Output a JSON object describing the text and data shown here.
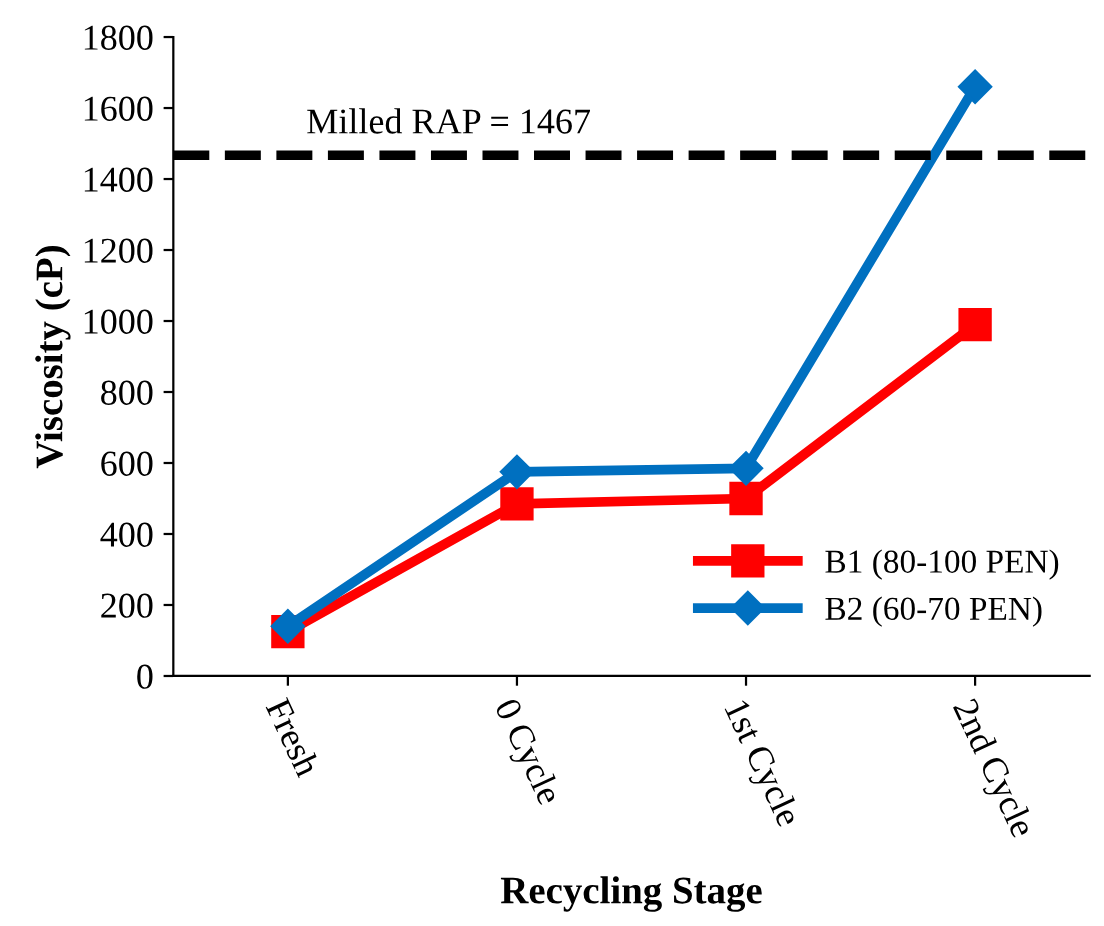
{
  "chart_data": {
    "type": "line",
    "xlabel": "Recycling Stage",
    "ylabel": "Viscosity (cP)",
    "categories": [
      "Fresh",
      "0 Cycle",
      "1st Cycle",
      "2nd Cycle"
    ],
    "series": [
      {
        "name": "B1 (80-100 PEN)",
        "color": "#ff0000",
        "values": [
          125,
          485,
          500,
          990
        ],
        "marker": "square"
      },
      {
        "name": "B2 (60-70 PEN)",
        "color": "#0070c0",
        "values": [
          140,
          575,
          585,
          1660
        ],
        "marker": "diamond"
      }
    ],
    "ylim": [
      0,
      1800
    ],
    "yticks": [
      0,
      200,
      400,
      600,
      800,
      1000,
      1200,
      1400,
      1600,
      1800
    ],
    "ref_lines": [
      {
        "axis": "y",
        "value": 1467,
        "label": "Milled RAP = 1467",
        "color": "#000000",
        "line_style": "dashed"
      }
    ],
    "grid": false,
    "legend": "bottom right",
    "line_style": "solid"
  }
}
